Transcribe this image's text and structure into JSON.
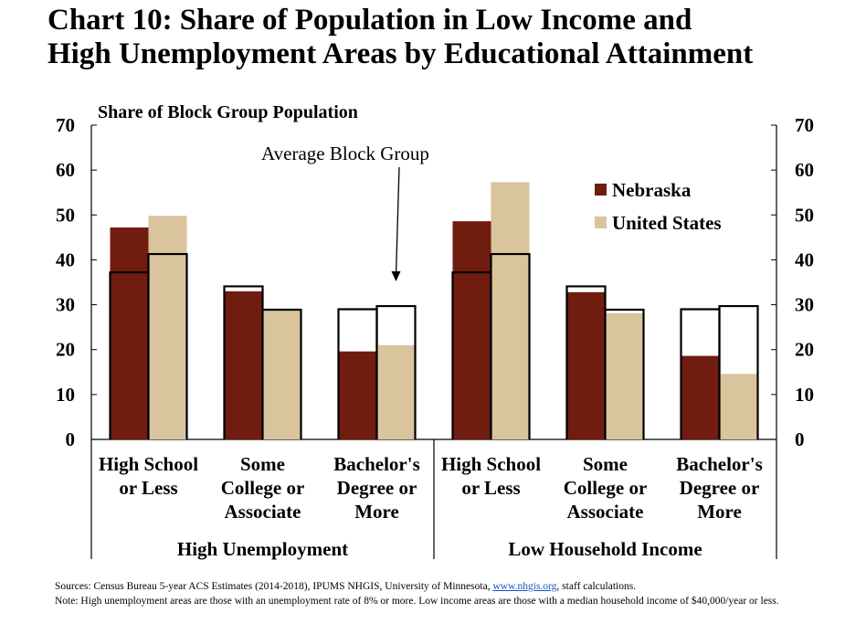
{
  "title_line1": "Chart 10: Share of Population in Low Income and",
  "title_line2": "High Unemployment Areas by Educational Attainment",
  "colors": {
    "nebraska": "#701c0f",
    "united_states": "#d9c49e",
    "average_outline": "#000000"
  },
  "chart_data": {
    "type": "bar",
    "ylabel": "Share of Block Group Population",
    "ylim": [
      0,
      70
    ],
    "yticks": [
      0,
      10,
      20,
      30,
      40,
      50,
      60,
      70
    ],
    "grid": false,
    "legend_position": "top-right",
    "groups": [
      {
        "label": "High Unemployment",
        "categories": [
          [
            "High School",
            "or Less"
          ],
          [
            "Some",
            "College or",
            "Associate"
          ],
          [
            "Bachelor's",
            "Degree or",
            "More"
          ]
        ]
      },
      {
        "label": "Low Household Income",
        "categories": [
          [
            "High School",
            "or Less"
          ],
          [
            "Some",
            "College or",
            "Associate"
          ],
          [
            "Bachelor's",
            "Degree or",
            "More"
          ]
        ]
      }
    ],
    "series": [
      {
        "name": "Nebraska",
        "values": [
          47.2,
          33.0,
          19.6,
          48.6,
          32.8,
          18.6
        ]
      },
      {
        "name": "United States",
        "values": [
          49.8,
          28.9,
          21.0,
          57.3,
          28.1,
          14.6
        ]
      }
    ],
    "average_block_group": {
      "nebraska": [
        37.2,
        34.1,
        29.0,
        37.2,
        34.1,
        29.0
      ],
      "united_states": [
        41.3,
        28.9,
        29.7,
        41.3,
        28.9,
        29.7
      ]
    },
    "annotation": "Average Block Group",
    "annotation_target_index": 2
  },
  "source_prefix": "Sources: Census Bureau 5-year ACS Estimates (2014-2018), IPUMS NHGIS, University of Minnesota, ",
  "source_link": "www.nhgis.org",
  "source_suffix": ", staff calculations.",
  "note": "Note: High unemployment areas are those with an unemployment rate of 8% or more. Low income areas are those with a median household income of $40,000/year or less."
}
